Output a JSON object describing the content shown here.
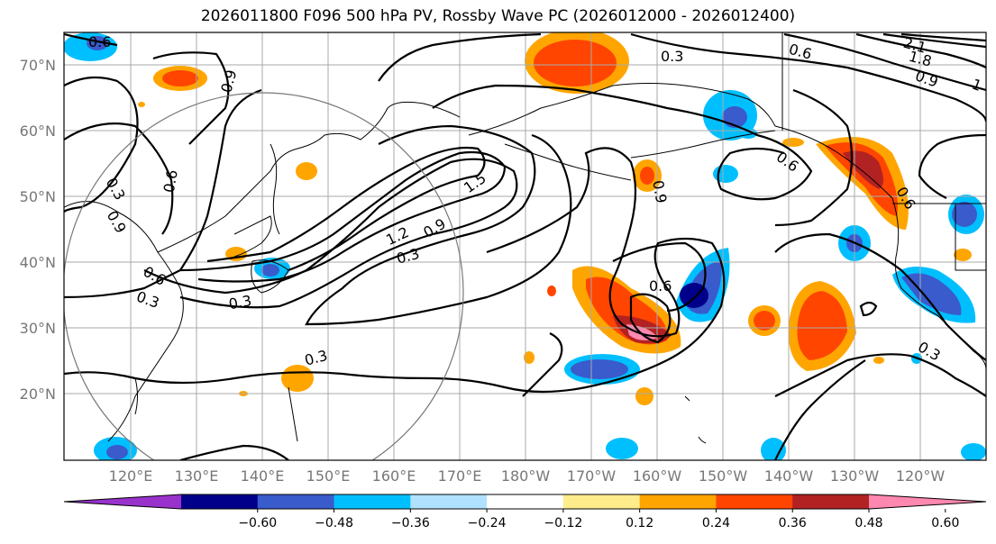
{
  "title": "2026011800 F096 500 hPa PV, Rossby Wave PC (2026012000 - 2026012400)",
  "latitude_labels": [
    "70°N",
    "60°N",
    "50°N",
    "40°N",
    "30°N",
    "20°N"
  ],
  "longitude_labels": [
    "120°E",
    "130°E",
    "140°E",
    "150°E",
    "160°E",
    "170°E",
    "180°W",
    "170°W",
    "160°W",
    "150°W",
    "140°W",
    "130°W",
    "120°W"
  ],
  "contour_labels": [
    "0.6",
    "0.9",
    "0.3",
    "0.6",
    "0.9",
    "0.6",
    "0.3",
    "1.5",
    "1.2",
    "0.9",
    "0.3",
    "0.3",
    "0.3",
    "0.6",
    "0.6",
    "0.3",
    "0.6",
    "0.9",
    "0.3",
    "0.6",
    "0.9",
    "1.8",
    "2.1",
    "1"
  ],
  "colorbar": {
    "ticks": [
      "−0.60",
      "−0.48",
      "−0.36",
      "−0.24",
      "−0.12",
      "0.12",
      "0.24",
      "0.36",
      "0.48",
      "0.60"
    ],
    "colors": [
      "#9932CC",
      "#00008B",
      "#3A5BCB",
      "#00BFFF",
      "#B0E2FF",
      "#FFFFFF",
      "#FFEC8B",
      "#FFA500",
      "#FF4500",
      "#B22222",
      "#FF88B0"
    ]
  },
  "colors": {
    "graticule": "#aaaaaa",
    "label_gray": "#777777",
    "contour": "#000000"
  }
}
